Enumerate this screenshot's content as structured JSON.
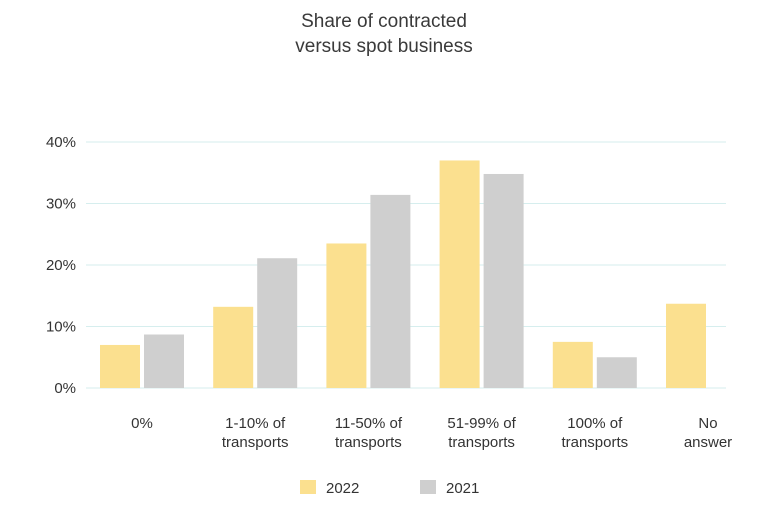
{
  "chart_data": {
    "type": "bar",
    "title": [
      "Share of contracted",
      "versus spot business"
    ],
    "categories": [
      [
        "0%"
      ],
      [
        "1-10% of",
        "transports"
      ],
      [
        "11-50% of",
        "transports"
      ],
      [
        "51-99% of",
        "transports"
      ],
      [
        "100% of",
        "transports"
      ],
      [
        "No",
        "answer"
      ]
    ],
    "series": [
      {
        "name": "2022",
        "color": "#fbe08f",
        "values": [
          7,
          13.2,
          23.5,
          37,
          7.5,
          13.7
        ]
      },
      {
        "name": "2021",
        "color": "#cfcfcf",
        "values": [
          8.7,
          21.1,
          31.4,
          34.8,
          5,
          null
        ]
      }
    ],
    "ylim": [
      0,
      40
    ],
    "yticks": [
      0,
      10,
      20,
      30,
      40
    ],
    "ytick_labels": [
      "0%",
      "10%",
      "20%",
      "30%",
      "40%"
    ],
    "grid": true,
    "legend_position": "bottom-center"
  }
}
